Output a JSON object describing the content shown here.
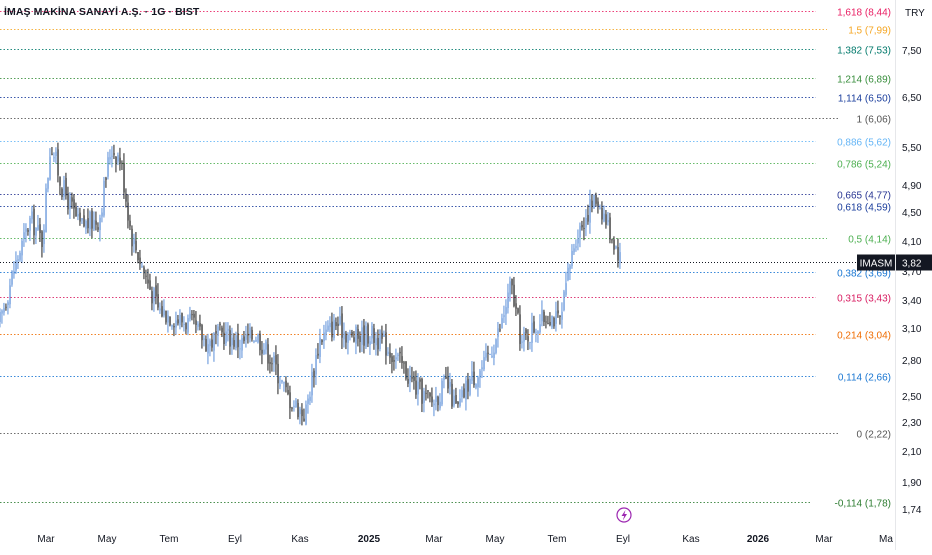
{
  "header": {
    "title": "İMAŞ MAKİNA SANAYİ A.Ş. · 1G · BIST",
    "currency": "TRY"
  },
  "colors": {
    "background": "#ffffff",
    "candle_up": "#5b8fd8",
    "candle_down": "#1e1e1e",
    "axis_text": "#131722",
    "lightning": "#9c27b0"
  },
  "icons": {
    "event": "lightning-icon"
  },
  "chart_data": {
    "type": "candlestick",
    "ticker": "IMASM",
    "last_price": 3.82,
    "last_price_label": "3,82",
    "ylim": [
      1.58,
      8.7
    ],
    "y_ticks": [
      {
        "v": 7.5,
        "label": "7,50"
      },
      {
        "v": 6.5,
        "label": "6,50"
      },
      {
        "v": 5.5,
        "label": "5,50"
      },
      {
        "v": 4.9,
        "label": "4,90"
      },
      {
        "v": 4.5,
        "label": "4,50"
      },
      {
        "v": 4.1,
        "label": "4,10"
      },
      {
        "v": 3.7,
        "label": "3,70"
      },
      {
        "v": 3.4,
        "label": "3,40"
      },
      {
        "v": 3.1,
        "label": "3,10"
      },
      {
        "v": 2.8,
        "label": "2,80"
      },
      {
        "v": 2.5,
        "label": "2,50"
      },
      {
        "v": 2.3,
        "label": "2,30"
      },
      {
        "v": 2.1,
        "label": "2,10"
      },
      {
        "v": 1.9,
        "label": "1,90"
      },
      {
        "v": 1.74,
        "label": "1,74"
      }
    ],
    "x_ticks": [
      {
        "label": "Mar",
        "bold": false
      },
      {
        "label": "May",
        "bold": false
      },
      {
        "label": "Tem",
        "bold": false
      },
      {
        "label": "Eyl",
        "bold": false
      },
      {
        "label": "Kas",
        "bold": false
      },
      {
        "label": "2025",
        "bold": true
      },
      {
        "label": "Mar",
        "bold": false
      },
      {
        "label": "May",
        "bold": false
      },
      {
        "label": "Tem",
        "bold": false
      },
      {
        "label": "Eyl",
        "bold": false
      },
      {
        "label": "Kas",
        "bold": false
      },
      {
        "label": "2026",
        "bold": true
      },
      {
        "label": "Mar",
        "bold": false
      },
      {
        "label": "Ma",
        "bold": false
      }
    ],
    "fib_levels": [
      {
        "ratio": "1,618",
        "price": 8.44,
        "label": "1,618 (8,44)",
        "color": "#e91e63"
      },
      {
        "ratio": "1,5",
        "price": 7.99,
        "label": "1,5 (7,99)",
        "color": "#f5a623"
      },
      {
        "ratio": "1,382",
        "price": 7.53,
        "label": "1,382 (7,53)",
        "color": "#00796b"
      },
      {
        "ratio": "1,214",
        "price": 6.89,
        "label": "1,214 (6,89)",
        "color": "#388e3c"
      },
      {
        "ratio": "1,114",
        "price": 6.5,
        "label": "1,114 (6,50)",
        "color": "#1a3d9c"
      },
      {
        "ratio": "1",
        "price": 6.06,
        "label": "1 (6,06)",
        "color": "#555555"
      },
      {
        "ratio": "0,886",
        "price": 5.62,
        "label": "0,886 (5,62)",
        "color": "#64b5f6"
      },
      {
        "ratio": "0,786",
        "price": 5.24,
        "label": "0,786 (5,24)",
        "color": "#4caf50"
      },
      {
        "ratio": "0,665",
        "price": 4.77,
        "label": "0,665 (4,77)",
        "color": "#283593"
      },
      {
        "ratio": "0,618",
        "price": 4.59,
        "label": "0,618 (4,59)",
        "color": "#1a3d9c"
      },
      {
        "ratio": "0,5",
        "price": 4.14,
        "label": "0,5 (4,14)",
        "color": "#4caf50"
      },
      {
        "ratio": "0,382",
        "price": 3.69,
        "label": "0,382 (3,69)",
        "color": "#1976d2"
      },
      {
        "ratio": "0,315",
        "price": 3.43,
        "label": "0,315 (3,43)",
        "color": "#d81b60"
      },
      {
        "ratio": "0,214",
        "price": 3.04,
        "label": "0,214 (3,04)",
        "color": "#ef6c00"
      },
      {
        "ratio": "0,114",
        "price": 2.66,
        "label": "0,114 (2,66)",
        "color": "#1976d2"
      },
      {
        "ratio": "0",
        "price": 2.22,
        "label": "0 (2,22)",
        "color": "#555555"
      },
      {
        "ratio": "-0,114",
        "price": 1.78,
        "label": "-0,114 (1,78)",
        "color": "#2e7d32"
      }
    ],
    "price_path": [
      [
        "2024-01-15",
        3.1
      ],
      [
        "2024-02-01",
        3.8
      ],
      [
        "2024-02-15",
        4.4
      ],
      [
        "2024-02-26",
        4.1
      ],
      [
        "2024-03-05",
        5.6
      ],
      [
        "2024-03-15",
        4.9
      ],
      [
        "2024-04-01",
        4.3
      ],
      [
        "2024-04-20",
        4.4
      ],
      [
        "2024-05-01",
        5.5
      ],
      [
        "2024-05-10",
        5.3
      ],
      [
        "2024-05-20",
        4.2
      ],
      [
        "2024-06-01",
        3.7
      ],
      [
        "2024-06-15",
        3.3
      ],
      [
        "2024-07-01",
        3.2
      ],
      [
        "2024-07-15",
        3.15
      ],
      [
        "2024-08-01",
        2.95
      ],
      [
        "2024-08-15",
        3.05
      ],
      [
        "2024-09-01",
        2.95
      ],
      [
        "2024-09-15",
        3.05
      ],
      [
        "2024-10-01",
        2.8
      ],
      [
        "2024-10-15",
        2.5
      ],
      [
        "2024-11-01",
        2.35
      ],
      [
        "2024-11-15",
        3.0
      ],
      [
        "2024-12-01",
        3.15
      ],
      [
        "2024-12-15",
        3.0
      ],
      [
        "2025-01-01",
        3.05
      ],
      [
        "2025-01-15",
        2.95
      ],
      [
        "2025-02-01",
        2.75
      ],
      [
        "2025-02-15",
        2.55
      ],
      [
        "2025-03-01",
        2.45
      ],
      [
        "2025-03-15",
        2.6
      ],
      [
        "2025-03-25",
        2.38
      ],
      [
        "2025-04-05",
        2.62
      ],
      [
        "2025-04-20",
        2.75
      ],
      [
        "2025-05-05",
        3.1
      ],
      [
        "2025-05-15",
        3.55
      ],
      [
        "2025-05-25",
        2.95
      ],
      [
        "2025-06-05",
        3.1
      ],
      [
        "2025-06-20",
        3.25
      ],
      [
        "2025-07-01",
        3.15
      ],
      [
        "2025-07-15",
        4.15
      ],
      [
        "2025-07-30",
        4.6
      ],
      [
        "2025-08-05",
        4.7
      ],
      [
        "2025-08-15",
        4.3
      ],
      [
        "2025-08-28",
        3.82
      ]
    ]
  }
}
